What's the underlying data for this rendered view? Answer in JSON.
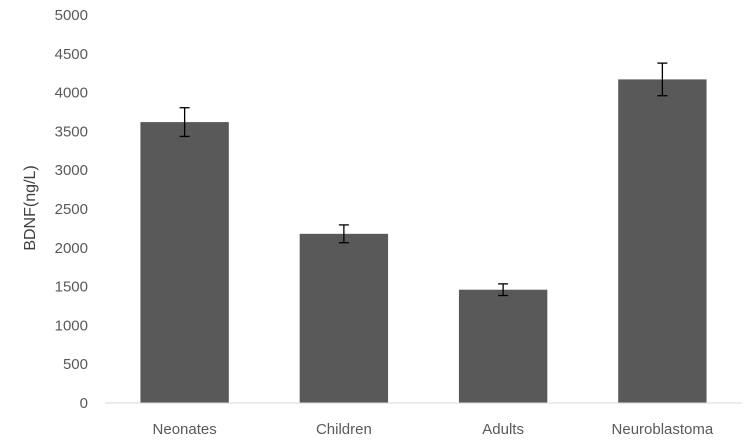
{
  "chart_data": {
    "type": "bar",
    "title": "",
    "xlabel": "",
    "ylabel": "BDNF(ng/L)",
    "categories": [
      "Neonates",
      "Children",
      "Adults",
      "Neuroblastoma"
    ],
    "values": [
      3620,
      2180,
      1460,
      4170
    ],
    "error": [
      185,
      115,
      75,
      210
    ],
    "ylim": [
      0,
      5000
    ],
    "yticks": [
      0,
      500,
      1000,
      1500,
      2000,
      2500,
      3000,
      3500,
      4000,
      4500,
      5000
    ],
    "grid": false,
    "legend": "none",
    "colors": {
      "bar": "#595959",
      "error_bar": "#000000",
      "axis_line": "#d9d9d9",
      "tick_text": "#595959",
      "title_text": "#404040"
    }
  }
}
